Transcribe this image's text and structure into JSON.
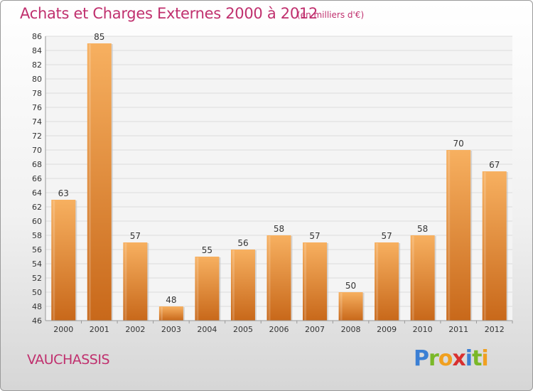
{
  "header": {
    "title": "Achats et Charges Externes 2000 à 2012",
    "unit": "(en milliers d'€)"
  },
  "commune": "VAUCHASSIS",
  "logo": {
    "letters": [
      {
        "char": "P",
        "color": "#3b7fd4"
      },
      {
        "char": "r",
        "color": "#7ab828"
      },
      {
        "char": "o",
        "color": "#f0a020"
      },
      {
        "char": "x",
        "color": "#d83030"
      },
      {
        "char": "i",
        "color": "#3b7fd4"
      },
      {
        "char": "t",
        "color": "#7ab828"
      },
      {
        "char": "i",
        "color": "#f0a020"
      }
    ]
  },
  "chart_data": {
    "type": "bar",
    "categories": [
      "2000",
      "2001",
      "2002",
      "2003",
      "2004",
      "2005",
      "2006",
      "2007",
      "2008",
      "2009",
      "2010",
      "2011",
      "2012"
    ],
    "values": [
      63,
      85,
      57,
      48,
      55,
      56,
      58,
      57,
      50,
      57,
      58,
      70,
      67
    ],
    "ylim": [
      46,
      86
    ],
    "yticks": [
      46,
      48,
      50,
      52,
      54,
      56,
      58,
      60,
      62,
      64,
      66,
      68,
      70,
      72,
      74,
      76,
      78,
      80,
      82,
      84,
      86
    ],
    "grid": true,
    "bar_color": "#f0902c",
    "bar_color_light": "#f7b060",
    "bar_color_dark": "#c8681a"
  }
}
